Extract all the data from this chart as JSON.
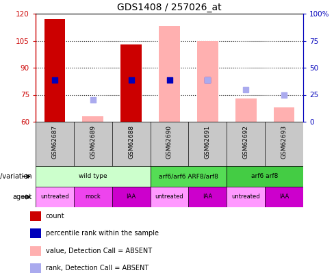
{
  "title": "GDS1408 / 257026_at",
  "samples": [
    "GSM62687",
    "GSM62689",
    "GSM62688",
    "GSM62690",
    "GSM62691",
    "GSM62692",
    "GSM62693"
  ],
  "ylim_left": [
    60,
    120
  ],
  "ylim_right": [
    0,
    100
  ],
  "yticks_left": [
    60,
    75,
    90,
    105,
    120
  ],
  "yticks_right": [
    0,
    25,
    50,
    75,
    100
  ],
  "bar_values_present": [
    117,
    null,
    103,
    null,
    null,
    null,
    null
  ],
  "bar_values_absent": [
    null,
    63,
    null,
    113,
    105,
    73,
    68
  ],
  "dot_blue_y": [
    83,
    null,
    83,
    null,
    null,
    null,
    null
  ],
  "dot_blue_absent_y": [
    null,
    null,
    null,
    83,
    83,
    null,
    null
  ],
  "dot_light_blue_y": [
    null,
    72,
    null,
    null,
    83,
    78,
    75
  ],
  "bar_color_present": "#cc0000",
  "bar_color_absent": "#ffb0b0",
  "dot_color_present": "#0000bb",
  "dot_color_absent": "#aaaaee",
  "bar_width": 0.55,
  "genotype_groups": [
    {
      "label": "wild type",
      "cols": [
        0,
        1,
        2
      ],
      "color": "#ccffcc"
    },
    {
      "label": "arf6/arf6 ARF8/arf8",
      "cols": [
        3,
        4
      ],
      "color": "#55dd55"
    },
    {
      "label": "arf6 arf8",
      "cols": [
        5,
        6
      ],
      "color": "#44cc44"
    }
  ],
  "agent_labels": [
    "untreated",
    "mock",
    "IAA",
    "untreated",
    "IAA",
    "untreated",
    "IAA"
  ],
  "agent_colors": [
    "#ff99ff",
    "#ee44ee",
    "#cc00cc",
    "#ff99ff",
    "#cc00cc",
    "#ff99ff",
    "#cc00cc"
  ],
  "legend_items": [
    {
      "label": "count",
      "color": "#cc0000"
    },
    {
      "label": "percentile rank within the sample",
      "color": "#0000bb"
    },
    {
      "label": "value, Detection Call = ABSENT",
      "color": "#ffb0b0"
    },
    {
      "label": "rank, Detection Call = ABSENT",
      "color": "#aaaaee"
    }
  ],
  "left_axis_color": "#cc0000",
  "right_axis_color": "#0000bb"
}
